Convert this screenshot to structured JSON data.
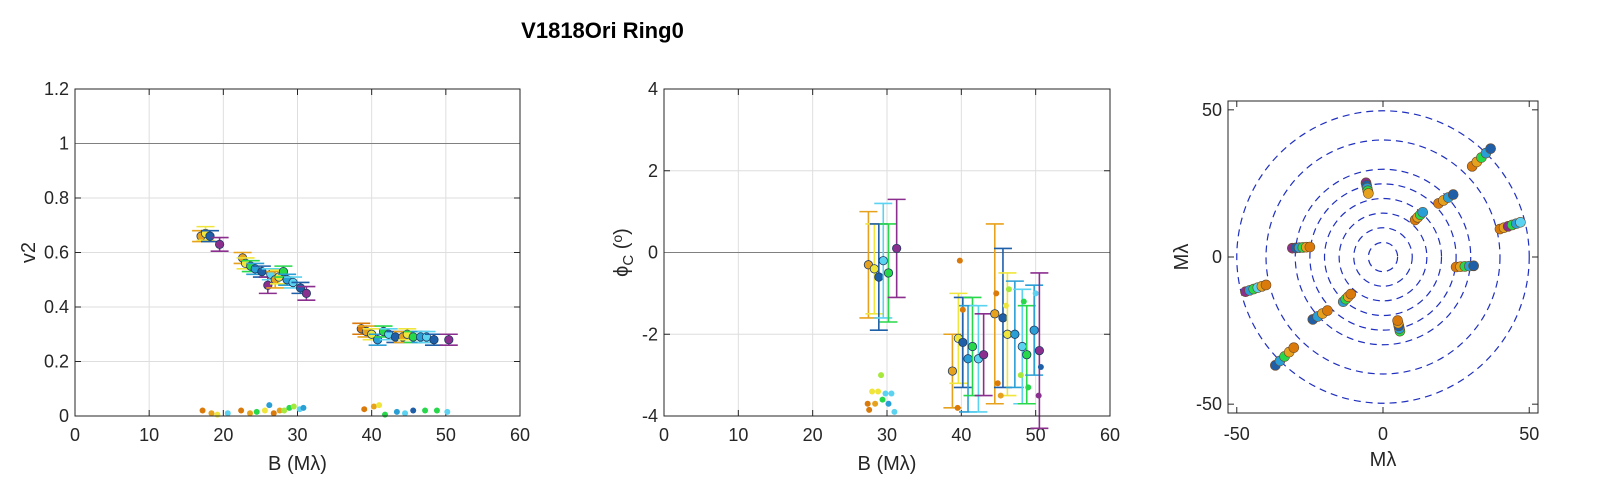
{
  "title": "V1818Ori  Ring0",
  "palette": [
    "#8b2f8f",
    "#1f5fa8",
    "#2a9fd6",
    "#5ad2f0",
    "#28d84b",
    "#a6e83c",
    "#f0e53a",
    "#e7a21d",
    "#d97a0a"
  ],
  "chart_data": [
    {
      "type": "scatter",
      "name": "v2-vs-baseline",
      "xlabel": "B (Mλ)",
      "ylabel": "v2",
      "xlim": [
        0,
        60
      ],
      "ylim": [
        0,
        1.2
      ],
      "xticks": [
        0,
        10,
        20,
        30,
        40,
        50,
        60
      ],
      "yticks": [
        0,
        0.2,
        0.4,
        0.6,
        0.8,
        1,
        1.2
      ],
      "ytick_labels": [
        "0",
        "0.2",
        "0.4",
        "0.6",
        "0.8",
        "1",
        "1.2"
      ],
      "grid": true,
      "reference_line_y": 1,
      "points_with_errorbars": [
        {
          "x": 17.0,
          "y": 0.66,
          "err": 0.02,
          "c": 7
        },
        {
          "x": 17.6,
          "y": 0.67,
          "err": 0.025,
          "c": 6
        },
        {
          "x": 18.2,
          "y": 0.66,
          "err": 0.02,
          "c": 1
        },
        {
          "x": 19.5,
          "y": 0.63,
          "err": 0.025,
          "c": 0
        },
        {
          "x": 22.6,
          "y": 0.58,
          "err": 0.02,
          "c": 7
        },
        {
          "x": 23.0,
          "y": 0.56,
          "err": 0.02,
          "c": 6
        },
        {
          "x": 23.7,
          "y": 0.55,
          "err": 0.02,
          "c": 4
        },
        {
          "x": 24.3,
          "y": 0.54,
          "err": 0.02,
          "c": 2
        },
        {
          "x": 25.2,
          "y": 0.53,
          "err": 0.02,
          "c": 1
        },
        {
          "x": 26.0,
          "y": 0.48,
          "err": 0.03,
          "c": 0
        },
        {
          "x": 26.4,
          "y": 0.52,
          "err": 0.02,
          "c": 3
        },
        {
          "x": 27.0,
          "y": 0.5,
          "err": 0.03,
          "c": 7
        },
        {
          "x": 27.5,
          "y": 0.51,
          "err": 0.025,
          "c": 6
        },
        {
          "x": 28.1,
          "y": 0.53,
          "err": 0.02,
          "c": 4
        },
        {
          "x": 28.6,
          "y": 0.5,
          "err": 0.02,
          "c": 2
        },
        {
          "x": 29.4,
          "y": 0.49,
          "err": 0.02,
          "c": 3
        },
        {
          "x": 30.4,
          "y": 0.47,
          "err": 0.02,
          "c": 1
        },
        {
          "x": 31.2,
          "y": 0.45,
          "err": 0.025,
          "c": 0
        },
        {
          "x": 38.6,
          "y": 0.32,
          "err": 0.02,
          "c": 8
        },
        {
          "x": 39.3,
          "y": 0.31,
          "err": 0.02,
          "c": 7
        },
        {
          "x": 40.0,
          "y": 0.3,
          "err": 0.02,
          "c": 6
        },
        {
          "x": 40.8,
          "y": 0.28,
          "err": 0.02,
          "c": 2
        },
        {
          "x": 41.6,
          "y": 0.31,
          "err": 0.02,
          "c": 4
        },
        {
          "x": 42.3,
          "y": 0.3,
          "err": 0.02,
          "c": 3
        },
        {
          "x": 43.2,
          "y": 0.29,
          "err": 0.02,
          "c": 1
        },
        {
          "x": 44.2,
          "y": 0.29,
          "err": 0.02,
          "c": 7
        },
        {
          "x": 44.8,
          "y": 0.3,
          "err": 0.02,
          "c": 6
        },
        {
          "x": 45.6,
          "y": 0.29,
          "err": 0.02,
          "c": 4
        },
        {
          "x": 46.6,
          "y": 0.29,
          "err": 0.02,
          "c": 2
        },
        {
          "x": 47.4,
          "y": 0.29,
          "err": 0.02,
          "c": 3
        },
        {
          "x": 48.4,
          "y": 0.28,
          "err": 0.02,
          "c": 1
        },
        {
          "x": 50.4,
          "y": 0.28,
          "err": 0.02,
          "c": 0
        }
      ],
      "small_points": [
        {
          "x": 17.2,
          "y": 0.02,
          "c": 8
        },
        {
          "x": 18.4,
          "y": 0.01,
          "c": 7
        },
        {
          "x": 19.2,
          "y": 0.005,
          "c": 6
        },
        {
          "x": 20.6,
          "y": 0.01,
          "c": 3
        },
        {
          "x": 22.4,
          "y": 0.02,
          "c": 8
        },
        {
          "x": 23.6,
          "y": 0.01,
          "c": 7
        },
        {
          "x": 24.5,
          "y": 0.015,
          "c": 4
        },
        {
          "x": 25.6,
          "y": 0.02,
          "c": 6
        },
        {
          "x": 26.2,
          "y": 0.04,
          "c": 2
        },
        {
          "x": 26.8,
          "y": 0.01,
          "c": 8
        },
        {
          "x": 27.6,
          "y": 0.02,
          "c": 7
        },
        {
          "x": 28.2,
          "y": 0.02,
          "c": 5
        },
        {
          "x": 28.9,
          "y": 0.03,
          "c": 4
        },
        {
          "x": 29.5,
          "y": 0.035,
          "c": 5
        },
        {
          "x": 30.3,
          "y": 0.025,
          "c": 3
        },
        {
          "x": 30.8,
          "y": 0.03,
          "c": 2
        },
        {
          "x": 39.0,
          "y": 0.025,
          "c": 8
        },
        {
          "x": 40.3,
          "y": 0.035,
          "c": 7
        },
        {
          "x": 41.0,
          "y": 0.04,
          "c": 6
        },
        {
          "x": 41.8,
          "y": 0.005,
          "c": 4
        },
        {
          "x": 43.4,
          "y": 0.015,
          "c": 2
        },
        {
          "x": 44.5,
          "y": 0.01,
          "c": 3
        },
        {
          "x": 45.6,
          "y": 0.02,
          "c": 1
        },
        {
          "x": 47.2,
          "y": 0.02,
          "c": 4
        },
        {
          "x": 48.8,
          "y": 0.02,
          "c": 4
        },
        {
          "x": 50.2,
          "y": 0.015,
          "c": 3
        }
      ]
    },
    {
      "type": "scatter",
      "name": "closure-phase-vs-baseline",
      "xlabel": "B (Mλ)",
      "ylabel_main": "ϕ",
      "ylabel_sub": "C",
      "ylabel_tail": " (",
      "ylabel_sup": "o",
      "ylabel_end": ")",
      "xlim": [
        0,
        60
      ],
      "ylim": [
        -4,
        4
      ],
      "xticks": [
        0,
        10,
        20,
        30,
        40,
        50,
        60
      ],
      "yticks": [
        -4,
        -2,
        0,
        2,
        4
      ],
      "grid": true,
      "reference_line_y": 0,
      "points_with_errorbars": [
        {
          "x": 27.5,
          "y": -0.3,
          "err": 1.3,
          "c": 7
        },
        {
          "x": 28.3,
          "y": -0.4,
          "err": 1.1,
          "c": 6
        },
        {
          "x": 28.9,
          "y": -0.6,
          "err": 1.3,
          "c": 1
        },
        {
          "x": 29.5,
          "y": -0.2,
          "err": 1.4,
          "c": 3
        },
        {
          "x": 30.2,
          "y": -0.5,
          "err": 1.2,
          "c": 4
        },
        {
          "x": 31.3,
          "y": 0.1,
          "err": 1.2,
          "c": 0
        },
        {
          "x": 38.8,
          "y": -2.9,
          "err": 0.9,
          "c": 7
        },
        {
          "x": 39.6,
          "y": -2.1,
          "err": 1.1,
          "c": 6
        },
        {
          "x": 40.2,
          "y": -2.2,
          "err": 1.1,
          "c": 1
        },
        {
          "x": 40.9,
          "y": -2.6,
          "err": 1.3,
          "c": 2
        },
        {
          "x": 41.5,
          "y": -2.3,
          "err": 1.2,
          "c": 4
        },
        {
          "x": 42.3,
          "y": -2.6,
          "err": 1.3,
          "c": 3
        },
        {
          "x": 43.0,
          "y": -2.5,
          "err": 1.0,
          "c": 0
        },
        {
          "x": 44.5,
          "y": -1.5,
          "err": 2.2,
          "c": 7
        },
        {
          "x": 45.6,
          "y": -1.6,
          "err": 1.7,
          "c": 1
        },
        {
          "x": 46.2,
          "y": -2.0,
          "err": 1.5,
          "c": 6
        },
        {
          "x": 47.2,
          "y": -2.0,
          "err": 1.3,
          "c": 2
        },
        {
          "x": 48.2,
          "y": -2.3,
          "err": 1.4,
          "c": 3
        },
        {
          "x": 48.8,
          "y": -2.5,
          "err": 1.2,
          "c": 4
        },
        {
          "x": 49.8,
          "y": -1.9,
          "err": 1.1,
          "c": 2
        },
        {
          "x": 50.5,
          "y": -2.4,
          "err": 1.9,
          "c": 0
        }
      ],
      "small_points": [
        {
          "x": 27.4,
          "y": -3.7,
          "c": 8
        },
        {
          "x": 27.6,
          "y": -3.85,
          "c": 8
        },
        {
          "x": 28.0,
          "y": -3.4,
          "c": 6
        },
        {
          "x": 28.4,
          "y": -3.7,
          "c": 7
        },
        {
          "x": 28.8,
          "y": -3.4,
          "c": 6
        },
        {
          "x": 29.2,
          "y": -3.0,
          "c": 5
        },
        {
          "x": 29.4,
          "y": -3.6,
          "c": 4
        },
        {
          "x": 29.8,
          "y": -3.45,
          "c": 3
        },
        {
          "x": 30.2,
          "y": -3.7,
          "c": 2
        },
        {
          "x": 30.6,
          "y": -3.45,
          "c": 3
        },
        {
          "x": 31.0,
          "y": -3.9,
          "c": 3
        },
        {
          "x": 39.8,
          "y": -0.2,
          "c": 8
        },
        {
          "x": 39.5,
          "y": -3.8,
          "c": 8
        },
        {
          "x": 40.2,
          "y": -1.4,
          "c": 8
        },
        {
          "x": 44.7,
          "y": -1.0,
          "c": 8
        },
        {
          "x": 44.9,
          "y": -3.2,
          "c": 8
        },
        {
          "x": 45.3,
          "y": -3.5,
          "c": 7
        },
        {
          "x": 46.0,
          "y": -1.3,
          "c": 6
        },
        {
          "x": 46.4,
          "y": -0.9,
          "c": 5
        },
        {
          "x": 48.0,
          "y": -3.0,
          "c": 5
        },
        {
          "x": 48.4,
          "y": -1.2,
          "c": 4
        },
        {
          "x": 49.0,
          "y": -3.3,
          "c": 4
        },
        {
          "x": 50.0,
          "y": -1.0,
          "c": 3
        },
        {
          "x": 50.4,
          "y": -3.5,
          "c": 0
        },
        {
          "x": 50.7,
          "y": -2.8,
          "c": 1
        }
      ]
    },
    {
      "type": "scatter",
      "name": "uv-coverage",
      "xlabel": "Mλ",
      "ylabel": "Mλ",
      "xlim": [
        -53,
        53
      ],
      "ylim": [
        -53,
        53
      ],
      "xticks": [
        -50,
        0,
        50
      ],
      "yticks": [
        -50,
        0,
        50
      ],
      "grid": false,
      "ring_radii": [
        5,
        10,
        15,
        20,
        25,
        30,
        40,
        50
      ],
      "ring_color": "#1f2fbf",
      "tracks": [
        {
          "x1": 30.5,
          "y1": 30.8,
          "x2": 36.8,
          "y2": 36.8,
          "c": [
            8,
            7,
            4,
            2,
            1
          ]
        },
        {
          "x1": -36.8,
          "y1": -36.8,
          "x2": -30.5,
          "y2": -30.8,
          "c": [
            1,
            2,
            4,
            7,
            8
          ]
        },
        {
          "x1": 40.0,
          "y1": 9.5,
          "x2": 47.0,
          "y2": 11.8,
          "c": [
            8,
            7,
            0,
            4,
            2,
            3
          ]
        },
        {
          "x1": -47.0,
          "y1": -11.8,
          "x2": -40.0,
          "y2": -9.5,
          "c": [
            0,
            2,
            4,
            3,
            7,
            8
          ]
        },
        {
          "x1": 19.0,
          "y1": 18.2,
          "x2": 24.0,
          "y2": 21.2,
          "c": [
            8,
            7,
            2,
            1
          ]
        },
        {
          "x1": -24.0,
          "y1": -21.2,
          "x2": -19.0,
          "y2": -18.2,
          "c": [
            1,
            2,
            7,
            8
          ]
        },
        {
          "x1": -5.8,
          "y1": 25.2,
          "x2": -5.0,
          "y2": 21.6,
          "c": [
            0,
            1,
            2,
            4,
            7
          ]
        },
        {
          "x1": 5.8,
          "y1": -25.2,
          "x2": 5.0,
          "y2": -21.6,
          "c": [
            4,
            2,
            1,
            7,
            8
          ]
        },
        {
          "x1": -31.0,
          "y1": 3.0,
          "x2": -25.0,
          "y2": 3.4,
          "c": [
            0,
            1,
            2,
            4,
            7,
            8
          ]
        },
        {
          "x1": 25.0,
          "y1": -3.4,
          "x2": 31.0,
          "y2": -3.0,
          "c": [
            8,
            7,
            4,
            2,
            1
          ]
        },
        {
          "x1": 11.0,
          "y1": 12.6,
          "x2": 13.6,
          "y2": 15.2,
          "c": [
            8,
            7,
            4,
            2
          ]
        },
        {
          "x1": -13.6,
          "y1": -15.2,
          "x2": -11.0,
          "y2": -12.6,
          "c": [
            2,
            4,
            7,
            8
          ]
        }
      ]
    }
  ]
}
